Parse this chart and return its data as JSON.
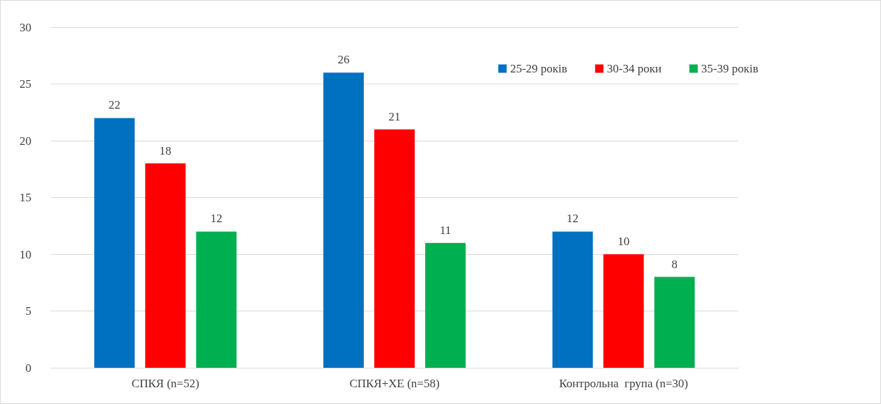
{
  "chart_data": {
    "type": "bar",
    "categories": [
      "СПКЯ (n=52)",
      "СПКЯ+ХЕ (n=58)",
      "Контрольна  група (n=30)"
    ],
    "series": [
      {
        "name": "25-29 років",
        "color": "#0070c0",
        "values": [
          22,
          26,
          12
        ]
      },
      {
        "name": "30-34 роки",
        "color": "#ff0000",
        "values": [
          18,
          21,
          10
        ]
      },
      {
        "name": "35-39 років",
        "color": "#00b050",
        "values": [
          12,
          11,
          8
        ]
      }
    ],
    "ylim": [
      0,
      30
    ],
    "yticks": [
      0,
      5,
      10,
      15,
      20,
      25,
      30
    ],
    "grid": "y",
    "legend": "top right",
    "data_labels": true
  }
}
